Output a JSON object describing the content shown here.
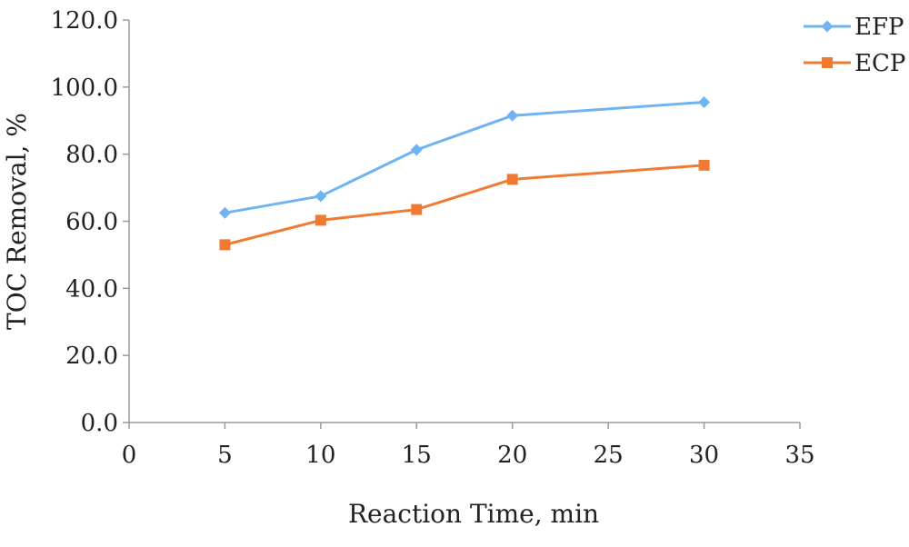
{
  "chart_data": {
    "type": "line",
    "xlabel": "Reaction Time, min",
    "ylabel": "TOC Removal, %",
    "xlim": [
      0,
      35
    ],
    "ylim": [
      0,
      120
    ],
    "x_ticks": [
      "0",
      "5",
      "10",
      "15",
      "20",
      "25",
      "30",
      "35"
    ],
    "x_tick_values": [
      0,
      5,
      10,
      15,
      20,
      25,
      30,
      35
    ],
    "y_ticks": [
      "0.0",
      "20.0",
      "40.0",
      "60.0",
      "80.0",
      "100.0",
      "120.0"
    ],
    "y_tick_values": [
      0,
      20,
      40,
      60,
      80,
      100,
      120
    ],
    "grid": false,
    "legend_position": "top-right",
    "series": [
      {
        "name": "EFP",
        "color": "#6fb3f0",
        "marker": "diamond",
        "x": [
          5,
          10,
          15,
          20,
          30
        ],
        "values": [
          62.5,
          67.5,
          81.3,
          91.5,
          95.5
        ]
      },
      {
        "name": "ECP",
        "color": "#f07a32",
        "marker": "square",
        "x": [
          5,
          10,
          15,
          20,
          30
        ],
        "values": [
          53.0,
          60.3,
          63.5,
          72.5,
          76.7
        ]
      }
    ]
  }
}
